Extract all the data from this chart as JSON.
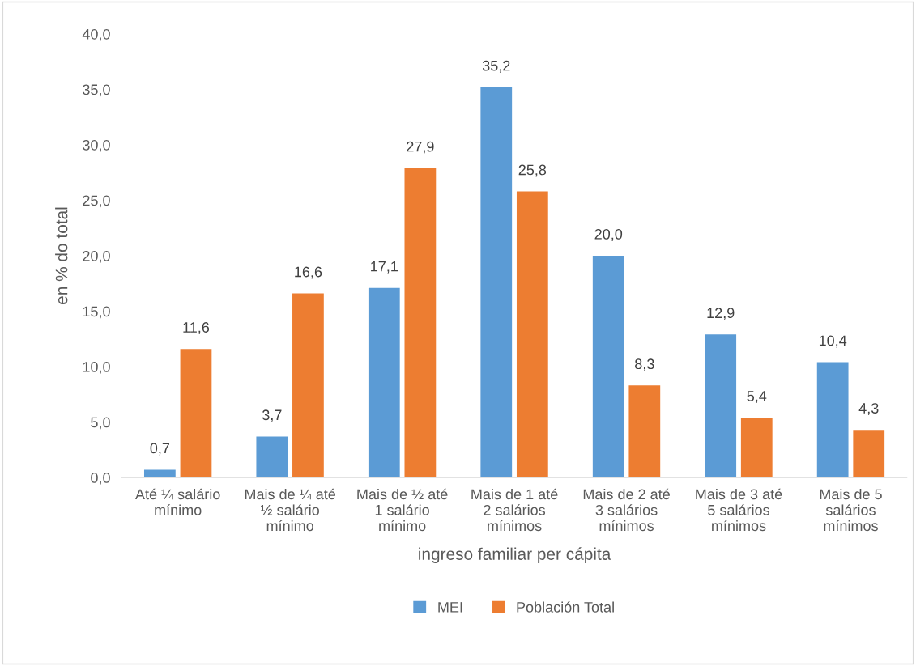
{
  "chart_data": {
    "type": "bar",
    "xlabel": "ingreso familiar per cápita",
    "ylabel": "en % do total",
    "categories": [
      "Até ¼ salário\nmínimo",
      "Mais de ¼ até\n½ salário\nmínimo",
      "Mais de ½ até\n1 salário\nmínimo",
      "Mais de 1 até\n2 salários\nmínimos",
      "Mais de 2 até\n3 salários\nmínimos",
      "Mais de 3 até\n5 salários\nmínimos",
      "Mais de 5\nsalários\nmínimos"
    ],
    "series": [
      {
        "name": "MEI",
        "color": "#5b9bd5",
        "values": [
          0.7,
          3.7,
          17.1,
          35.2,
          20.0,
          12.9,
          10.4
        ],
        "value_labels": [
          "0,7",
          "3,7",
          "17,1",
          "35,2",
          "20,0",
          "12,9",
          "10,4"
        ]
      },
      {
        "name": "Población Total",
        "color": "#ed7d31",
        "values": [
          11.6,
          16.6,
          27.9,
          25.8,
          8.3,
          5.4,
          4.3
        ],
        "value_labels": [
          "11,6",
          "16,6",
          "27,9",
          "25,8",
          "8,3",
          "5,4",
          "4,3"
        ]
      }
    ],
    "ylim": [
      0,
      40
    ],
    "yticks": [
      {
        "value": 0,
        "label": "0,0"
      },
      {
        "value": 5,
        "label": "5,0"
      },
      {
        "value": 10,
        "label": "10,0"
      },
      {
        "value": 15,
        "label": "15,0"
      },
      {
        "value": 20,
        "label": "20,0"
      },
      {
        "value": 25,
        "label": "25,0"
      },
      {
        "value": 30,
        "label": "30,0"
      },
      {
        "value": 35,
        "label": "35,0"
      },
      {
        "value": 40,
        "label": "40,0"
      }
    ],
    "grid": false,
    "legend": "bottom"
  }
}
